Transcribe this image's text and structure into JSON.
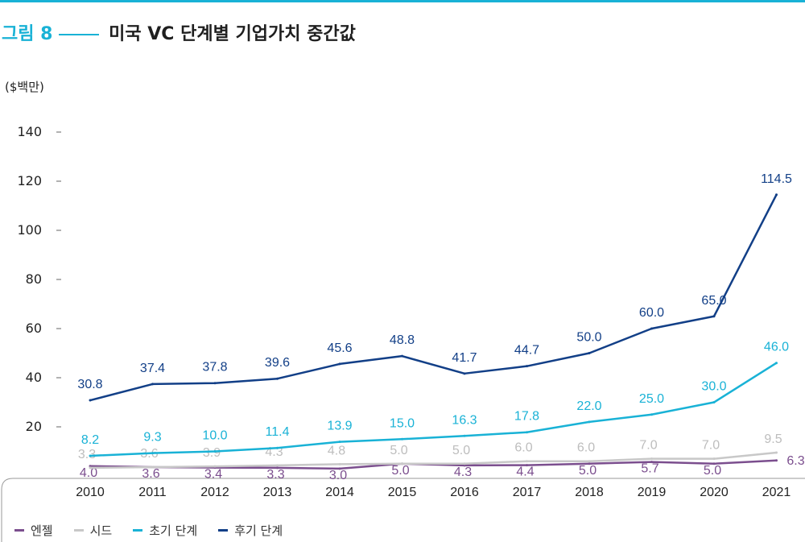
{
  "figure": {
    "number": "그림 8",
    "title": "미국 VC 단계별 기업가치 중간값",
    "unit": "($백만)"
  },
  "colors": {
    "accent": "#19b2d6",
    "angel": "#7b4e8e",
    "seed": "#c8c8c8",
    "early": "#19b2d6",
    "late": "#123f87"
  },
  "chart_data": {
    "type": "line",
    "x": [
      "2010",
      "2011",
      "2012",
      "2013",
      "2014",
      "2015",
      "2016",
      "2017",
      "2018",
      "2019",
      "2020",
      "2021"
    ],
    "ylim": [
      0,
      140
    ],
    "yticks": [
      "20",
      "40",
      "60",
      "80",
      "100",
      "120",
      "140"
    ],
    "ylabel": "($백만)",
    "legend_position": "bottom-left",
    "grid": false,
    "series": [
      {
        "name": "엔젤",
        "color": "#7b4e8e",
        "values": [
          4.0,
          3.6,
          3.4,
          3.3,
          3.0,
          5.0,
          4.3,
          4.4,
          5.0,
          5.7,
          5.0,
          6.3
        ],
        "labels": [
          "4.0",
          "3.6",
          "3.4",
          "3.3",
          "3.0",
          "5.0",
          "4.3",
          "4.4",
          "5.0",
          "5.7",
          "5.0",
          "6.3"
        ]
      },
      {
        "name": "시드",
        "color": "#c8c8c8",
        "values": [
          3.3,
          3.6,
          3.9,
          4.3,
          4.8,
          5.0,
          5.0,
          6.0,
          6.0,
          7.0,
          7.0,
          9.5
        ],
        "labels": [
          "3.3",
          "3.6",
          "3.9",
          "4.3",
          "4.8",
          "5.0",
          "5.0",
          "6.0",
          "6.0",
          "7.0",
          "7.0",
          "9.5"
        ]
      },
      {
        "name": "초기 단계",
        "color": "#19b2d6",
        "values": [
          8.2,
          9.3,
          10.0,
          11.4,
          13.9,
          15.0,
          16.3,
          17.8,
          22.0,
          25.0,
          30.0,
          46.0
        ],
        "labels": [
          "8.2",
          "9.3",
          "10.0",
          "11.4",
          "13.9",
          "15.0",
          "16.3",
          "17.8",
          "22.0",
          "25.0",
          "30.0",
          "46.0"
        ]
      },
      {
        "name": "후기 단계",
        "color": "#123f87",
        "values": [
          30.8,
          37.4,
          37.8,
          39.6,
          45.6,
          48.8,
          41.7,
          44.7,
          50.0,
          60.0,
          65.0,
          114.5
        ],
        "labels": [
          "30.8",
          "37.4",
          "37.8",
          "39.6",
          "45.6",
          "48.8",
          "41.7",
          "44.7",
          "50.0",
          "60.0",
          "65.0",
          "114.5"
        ]
      }
    ]
  }
}
